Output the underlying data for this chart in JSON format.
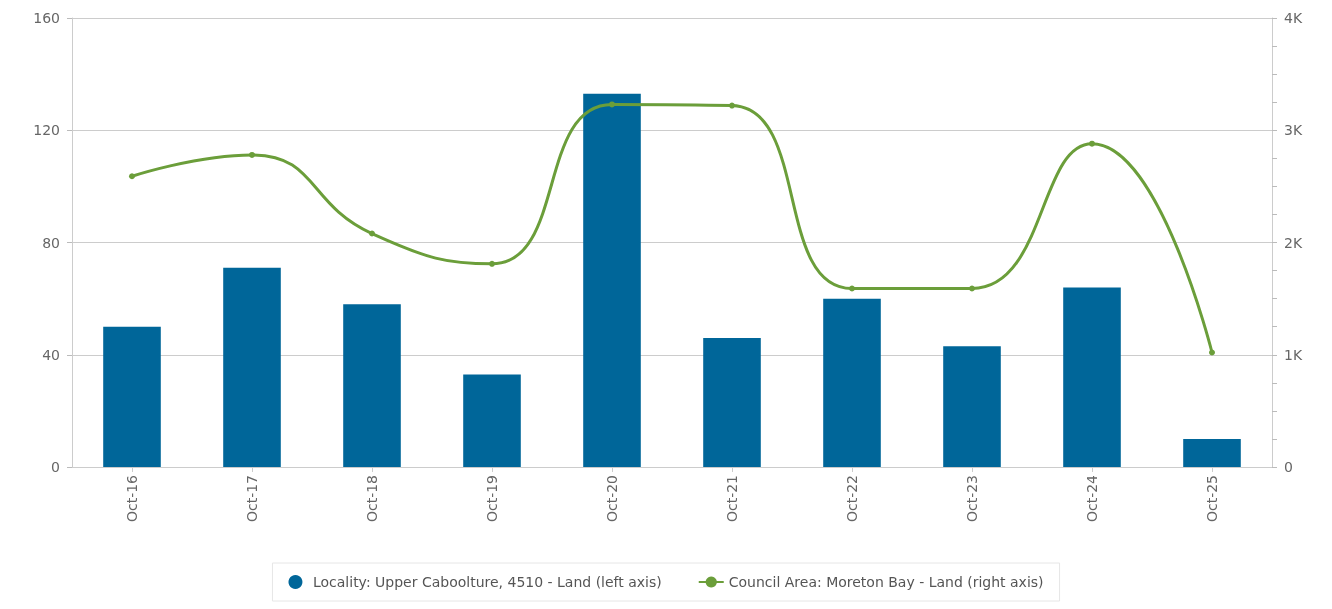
{
  "chart_data": {
    "type": "bar",
    "categories": [
      "Oct-16",
      "Oct-17",
      "Oct-18",
      "Oct-19",
      "Oct-20",
      "Oct-21",
      "Oct-22",
      "Oct-23",
      "Oct-24",
      "Oct-25"
    ],
    "series": [
      {
        "name": "Locality: Upper Caboolture, 4510 - Land (left axis)",
        "color": "#006699",
        "values": [
          50,
          71,
          58,
          33,
          133,
          46,
          60,
          43,
          64,
          10
        ]
      },
      {
        "name": "Council Area: Moreton Bay - Land (right axis)",
        "type": "line",
        "axis": "y2",
        "color": "#6b9e3a",
        "marker": "circle",
        "values": [
          2590,
          2780,
          2080,
          1810,
          3230,
          3220,
          1590,
          1590,
          2880,
          1020
        ]
      }
    ],
    "ylim": [
      0,
      160
    ],
    "yticks": [
      0,
      40,
      80,
      120,
      160
    ],
    "y2lim": [
      0,
      4000
    ],
    "y2ticks": [
      {
        "value": 0,
        "label": "0"
      },
      {
        "value": 250,
        "label": null
      },
      {
        "value": 500,
        "label": null
      },
      {
        "value": 750,
        "label": null
      },
      {
        "value": 1000,
        "label": "1K"
      },
      {
        "value": 1250,
        "label": null
      },
      {
        "value": 1500,
        "label": null
      },
      {
        "value": 1750,
        "label": null
      },
      {
        "value": 2000,
        "label": "2K"
      },
      {
        "value": 2250,
        "label": null
      },
      {
        "value": 2500,
        "label": null
      },
      {
        "value": 2750,
        "label": null
      },
      {
        "value": 3000,
        "label": "3K"
      },
      {
        "value": 3250,
        "label": null
      },
      {
        "value": 3500,
        "label": null
      },
      {
        "value": 3750,
        "label": null
      },
      {
        "value": 4000,
        "label": "4K"
      }
    ],
    "grid": "y",
    "legend": "bottom"
  }
}
